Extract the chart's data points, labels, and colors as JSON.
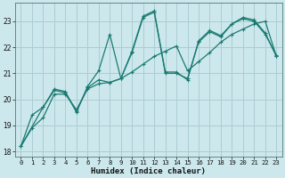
{
  "xlabel": "Humidex (Indice chaleur)",
  "bg_color": "#cce8ec",
  "grid_color": "#aacdd4",
  "line_color": "#1a7a72",
  "xlim": [
    -0.5,
    23.5
  ],
  "ylim": [
    17.8,
    23.7
  ],
  "xticks": [
    0,
    1,
    2,
    3,
    4,
    5,
    6,
    7,
    8,
    9,
    10,
    11,
    12,
    13,
    14,
    15,
    16,
    17,
    18,
    19,
    20,
    21,
    22,
    23
  ],
  "yticks": [
    18,
    19,
    20,
    21,
    22,
    23
  ],
  "line1_x": [
    0,
    1,
    2,
    3,
    4,
    5,
    6,
    7,
    8,
    9,
    10,
    11,
    12,
    13,
    14,
    15,
    16,
    17,
    18,
    19,
    20,
    21,
    22,
    23
  ],
  "line1_y": [
    18.2,
    19.4,
    19.7,
    20.4,
    20.3,
    19.5,
    20.5,
    21.1,
    22.5,
    20.8,
    21.8,
    23.15,
    23.35,
    21.0,
    21.0,
    20.8,
    22.2,
    22.6,
    22.4,
    22.9,
    23.1,
    23.0,
    22.5,
    21.7
  ],
  "line2_x": [
    0,
    2,
    3,
    4,
    5,
    6,
    7,
    8,
    9,
    10,
    11,
    12,
    13,
    14,
    15,
    16,
    17,
    18,
    19,
    20,
    21,
    22,
    23
  ],
  "line2_y": [
    18.2,
    19.7,
    20.35,
    20.25,
    19.55,
    20.45,
    20.75,
    20.65,
    20.8,
    21.85,
    23.2,
    23.4,
    21.05,
    21.05,
    20.75,
    22.25,
    22.65,
    22.45,
    22.9,
    23.15,
    23.05,
    22.55,
    21.65
  ],
  "line3_x": [
    0,
    1,
    2,
    3,
    4,
    5,
    6,
    7,
    8,
    9,
    10,
    11,
    12,
    13,
    14,
    15,
    16,
    17,
    18,
    19,
    20,
    21,
    22,
    23
  ],
  "line3_y": [
    18.2,
    18.9,
    19.3,
    20.2,
    20.2,
    19.6,
    20.4,
    20.6,
    20.65,
    20.8,
    21.05,
    21.35,
    21.65,
    21.85,
    22.05,
    21.1,
    21.45,
    21.8,
    22.2,
    22.5,
    22.7,
    22.9,
    23.0,
    21.65
  ]
}
